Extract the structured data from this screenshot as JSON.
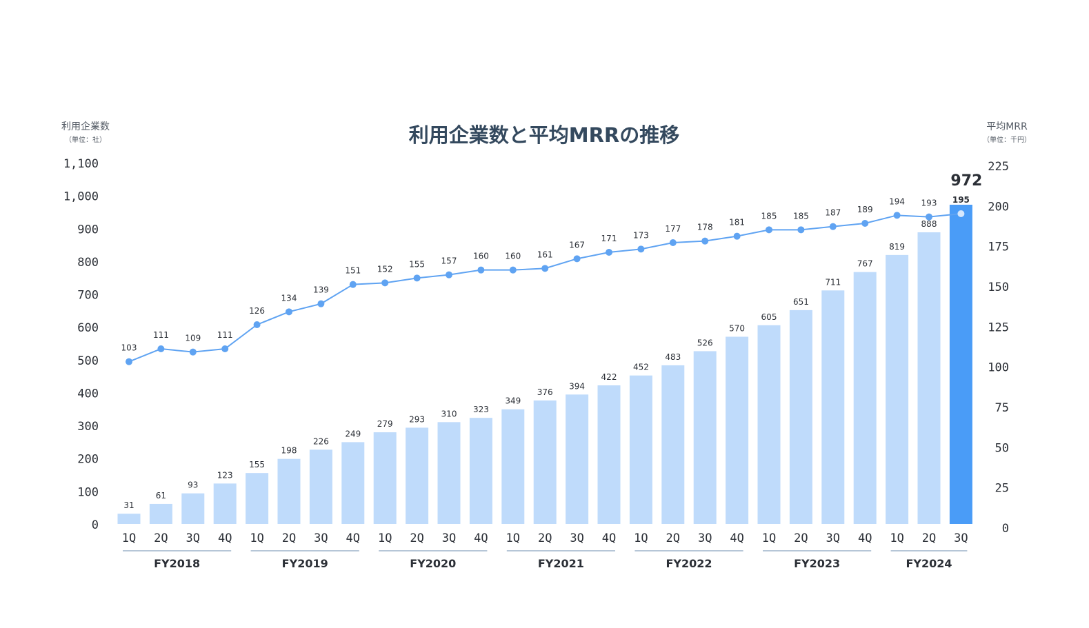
{
  "chart_data": {
    "type": "bar",
    "title": "利用企業数と平均MRRの推移",
    "left_axis": {
      "label": "利用企業数",
      "unit": "（単位：社）",
      "ylim": [
        0,
        1100
      ],
      "ticks": [
        0,
        100,
        200,
        300,
        400,
        500,
        600,
        700,
        800,
        900,
        "1,000",
        "1,100"
      ]
    },
    "right_axis": {
      "label": "平均MRR",
      "unit": "（単位：千円）",
      "ylim": [
        0,
        225
      ],
      "ticks": [
        0,
        25,
        50,
        75,
        100,
        125,
        150,
        175,
        200,
        225
      ]
    },
    "categories": [
      "1Q",
      "2Q",
      "3Q",
      "4Q",
      "1Q",
      "2Q",
      "3Q",
      "4Q",
      "1Q",
      "2Q",
      "3Q",
      "4Q",
      "1Q",
      "2Q",
      "3Q",
      "4Q",
      "1Q",
      "2Q",
      "3Q",
      "4Q",
      "1Q",
      "2Q",
      "3Q",
      "4Q",
      "1Q",
      "2Q",
      "3Q"
    ],
    "groups": [
      {
        "label": "FY2018",
        "count": 4
      },
      {
        "label": "FY2019",
        "count": 4
      },
      {
        "label": "FY2020",
        "count": 4
      },
      {
        "label": "FY2021",
        "count": 4
      },
      {
        "label": "FY2022",
        "count": 4
      },
      {
        "label": "FY2023",
        "count": 4
      },
      {
        "label": "FY2024",
        "count": 3
      }
    ],
    "series": [
      {
        "type": "bar",
        "axis": "left",
        "values": [
          31,
          61,
          93,
          123,
          155,
          198,
          226,
          249,
          279,
          293,
          310,
          323,
          349,
          376,
          394,
          422,
          452,
          483,
          526,
          570,
          605,
          651,
          711,
          767,
          819,
          888,
          972
        ],
        "color": "#bfdbfb",
        "highlight_color": "#4a9cf7",
        "highlight_index": 26
      },
      {
        "type": "line",
        "axis": "right",
        "values": [
          103,
          111,
          109,
          111,
          126,
          134,
          139,
          151,
          152,
          155,
          157,
          160,
          160,
          161,
          167,
          171,
          173,
          177,
          178,
          181,
          185,
          185,
          187,
          189,
          194,
          193,
          195
        ],
        "color": "#5fa3f2"
      }
    ],
    "highlight_label_color": "#1f6fd1"
  }
}
